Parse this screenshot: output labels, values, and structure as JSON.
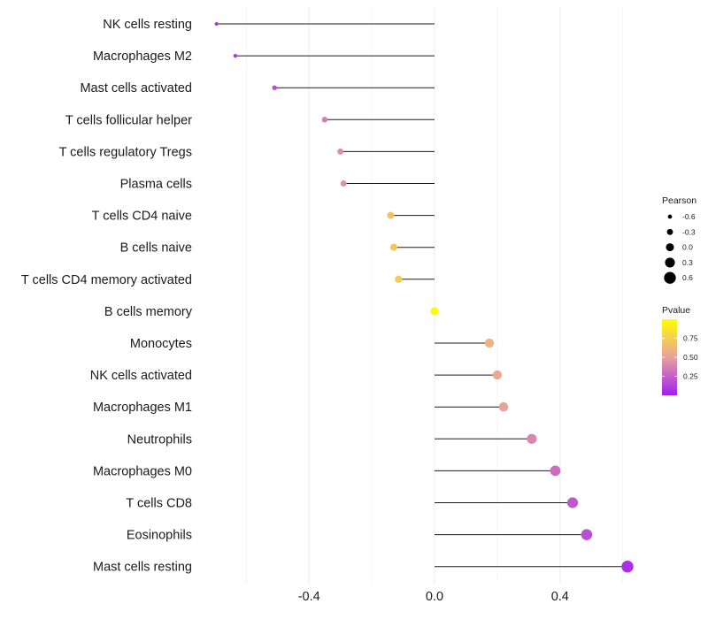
{
  "chart_data": {
    "type": "lollipop",
    "xlim": [
      -0.66,
      0.66
    ],
    "x_ticks": [
      -0.4,
      0.0,
      0.4
    ],
    "x_tick_labels": [
      "-0.4",
      "0.0",
      "0.4"
    ],
    "baseline": 0.0,
    "points": [
      {
        "label": "NK cells resting",
        "x": -0.695,
        "pearson": -0.695,
        "pvalue": 0.08
      },
      {
        "label": "Macrophages M2",
        "x": -0.635,
        "pearson": -0.635,
        "pvalue": 0.1
      },
      {
        "label": "Mast cells activated",
        "x": -0.51,
        "pearson": -0.51,
        "pvalue": 0.17
      },
      {
        "label": "T cells follicular helper",
        "x": -0.35,
        "pearson": -0.35,
        "pvalue": 0.38
      },
      {
        "label": "T cells regulatory  Tregs ",
        "x": -0.3,
        "pearson": -0.3,
        "pvalue": 0.42
      },
      {
        "label": "Plasma cells",
        "x": -0.29,
        "pearson": -0.29,
        "pvalue": 0.44
      },
      {
        "label": "T cells CD4 naive",
        "x": -0.14,
        "pearson": -0.14,
        "pvalue": 0.68
      },
      {
        "label": "B cells naive",
        "x": -0.13,
        "pearson": -0.13,
        "pvalue": 0.7
      },
      {
        "label": "T cells CD4 memory activated",
        "x": -0.115,
        "pearson": -0.115,
        "pvalue": 0.74
      },
      {
        "label": "B cells memory",
        "x": 0.0,
        "pearson": 0.0,
        "pvalue": 0.99
      },
      {
        "label": "Monocytes",
        "x": 0.175,
        "pearson": 0.175,
        "pvalue": 0.6
      },
      {
        "label": "NK cells activated",
        "x": 0.2,
        "pearson": 0.2,
        "pvalue": 0.55
      },
      {
        "label": "Macrophages M1",
        "x": 0.22,
        "pearson": 0.22,
        "pvalue": 0.52
      },
      {
        "label": "Neutrophils",
        "x": 0.31,
        "pearson": 0.31,
        "pvalue": 0.4
      },
      {
        "label": "Macrophages M0",
        "x": 0.385,
        "pearson": 0.385,
        "pvalue": 0.3
      },
      {
        "label": "T cells CD8",
        "x": 0.44,
        "pearson": 0.44,
        "pvalue": 0.22
      },
      {
        "label": "Eosinophils",
        "x": 0.485,
        "pearson": 0.485,
        "pvalue": 0.18
      },
      {
        "label": "Mast cells resting",
        "x": 0.615,
        "pearson": 0.615,
        "pvalue": 0.06
      }
    ],
    "legend_size": {
      "title": "Pearson",
      "values": [
        -0.6,
        -0.3,
        0.0,
        0.3,
        0.6
      ],
      "labels": [
        "-0.6",
        "-0.3",
        "0.0",
        "0.3",
        "0.6"
      ]
    },
    "legend_color": {
      "title": "Pvalue",
      "range": [
        0.0,
        1.0
      ],
      "ticks": [
        0.25,
        0.5,
        0.75
      ],
      "tick_labels": [
        "0.25",
        "0.50",
        "0.75"
      ],
      "low_color": "#a020f0",
      "mid_color": "#e8a0a0",
      "high_color": "#ffff00"
    },
    "grid": true,
    "grid_color": "#ebebeb",
    "line_color": "#1a1a1a"
  }
}
